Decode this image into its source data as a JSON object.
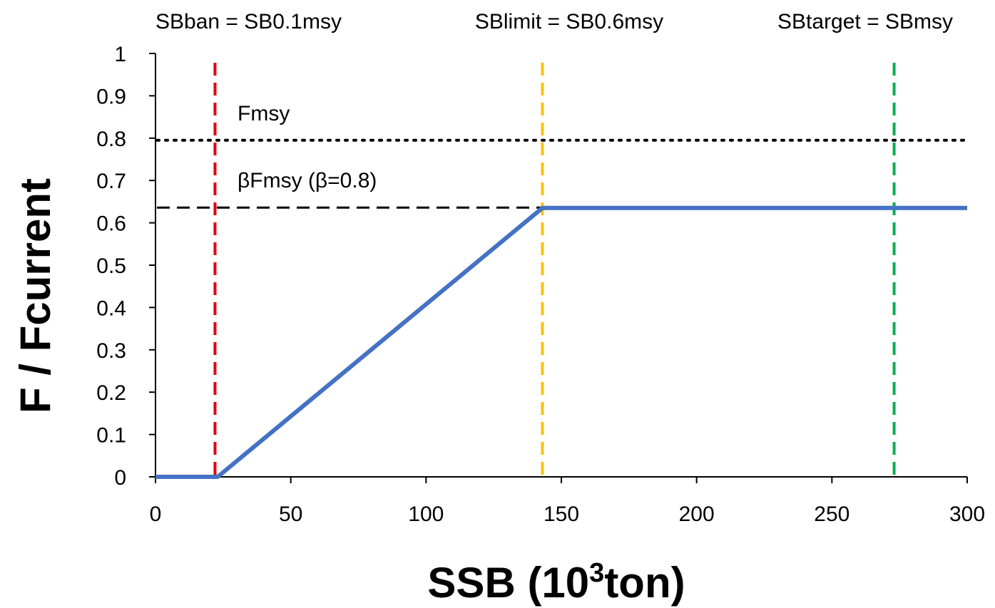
{
  "chart_data": {
    "type": "line",
    "title": "",
    "xlabel": {
      "main": "SSB (10",
      "sup": "3",
      "tail": "ton)"
    },
    "ylabel": "F / Fcurrent",
    "xlim": [
      0,
      300
    ],
    "ylim": [
      0,
      1
    ],
    "x_ticks": [
      0,
      50,
      100,
      150,
      200,
      250,
      300
    ],
    "y_ticks": [
      0,
      0.1,
      0.2,
      0.3,
      0.4,
      0.5,
      0.6,
      0.7,
      0.8,
      0.9,
      1
    ],
    "grid": false,
    "series": [
      {
        "color": "#4472c4",
        "style": "solid",
        "points": [
          {
            "x": 0,
            "y": 0
          },
          {
            "x": 23,
            "y": 0
          },
          {
            "x": 143,
            "y": 0.635
          },
          {
            "x": 300,
            "y": 0.635
          }
        ]
      }
    ],
    "reference_lines": {
      "horizontal": [
        {
          "label": "Fmsy",
          "y": 0.795,
          "color": "#000000",
          "style": "dotted"
        },
        {
          "label": "βFmsy (β=0.8)",
          "y": 0.636,
          "color": "#000000",
          "style": "dashed"
        }
      ],
      "vertical": [
        {
          "label": "SBban = SB0.1msy",
          "x": 22,
          "color": "#e8000b",
          "style": "dashed"
        },
        {
          "label": "SBlimit = SB0.6msy",
          "x": 143,
          "color": "#ffc000",
          "style": "dashed"
        },
        {
          "label": "SBtarget = SBmsy",
          "x": 273,
          "color": "#00b050",
          "style": "dashed"
        }
      ]
    }
  }
}
